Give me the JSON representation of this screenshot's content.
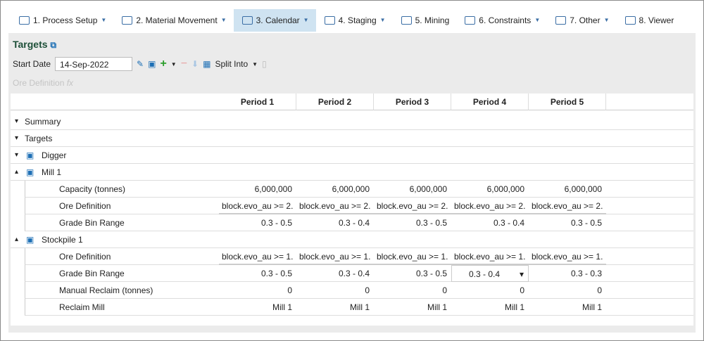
{
  "tabs": [
    "1. Process Setup",
    "2. Material Movement",
    "3. Calendar",
    "4. Staging",
    "5. Mining",
    "6. Constraints",
    "7. Other",
    "8. Viewer"
  ],
  "panel": {
    "title": "Targets",
    "start_date_label": "Start Date",
    "start_date": "14-Sep-2022",
    "split_into": "Split Into",
    "ore_definition": "Ore Definition"
  },
  "table": {
    "periods": [
      "Period 1",
      "Period 2",
      "Period 3",
      "Period 4",
      "Period 5"
    ],
    "groups": [
      {
        "label": "Summary",
        "rows": []
      },
      {
        "label": "Targets",
        "rows": []
      },
      {
        "label": "Digger",
        "rows": []
      },
      {
        "label": "Mill 1",
        "rows": [
          {
            "label": "Capacity (tonnes)",
            "cells": [
              "6,000,000",
              "6,000,000",
              "6,000,000",
              "6,000,000",
              "6,000,000"
            ]
          },
          {
            "label": "Ore Definition",
            "cells": [
              "block.evo_au >= 2.",
              "block.evo_au >= 2.",
              "block.evo_au >= 2.",
              "block.evo_au >= 2.",
              "block.evo_au >= 2."
            ]
          },
          {
            "label": "Grade Bin Range",
            "cells": [
              "0.3 - 0.5",
              "0.3 - 0.4",
              "0.3 - 0.5",
              "0.3 - 0.4",
              "0.3 - 0.5"
            ]
          }
        ]
      },
      {
        "label": "Stockpile 1",
        "rows": [
          {
            "label": "Ore Definition",
            "cells": [
              "block.evo_au >= 1.",
              "block.evo_au >= 1.",
              "block.evo_au >= 1.",
              "block.evo_au >= 1.",
              "block.evo_au >= 1."
            ]
          },
          {
            "label": "Grade Bin Range",
            "cells": [
              "0.3 - 0.5",
              "0.3 - 0.4",
              "0.3 - 0.5",
              "0.3 - 0.4",
              "0.3 - 0.3"
            ]
          },
          {
            "label": "Manual Reclaim (tonnes)",
            "cells": [
              "0",
              "0",
              "0",
              "0",
              "0"
            ]
          },
          {
            "label": "Reclaim Mill",
            "cells": [
              "Mill 1",
              "Mill 1",
              "Mill 1",
              "Mill 1",
              "Mill 1"
            ]
          }
        ]
      }
    ]
  }
}
